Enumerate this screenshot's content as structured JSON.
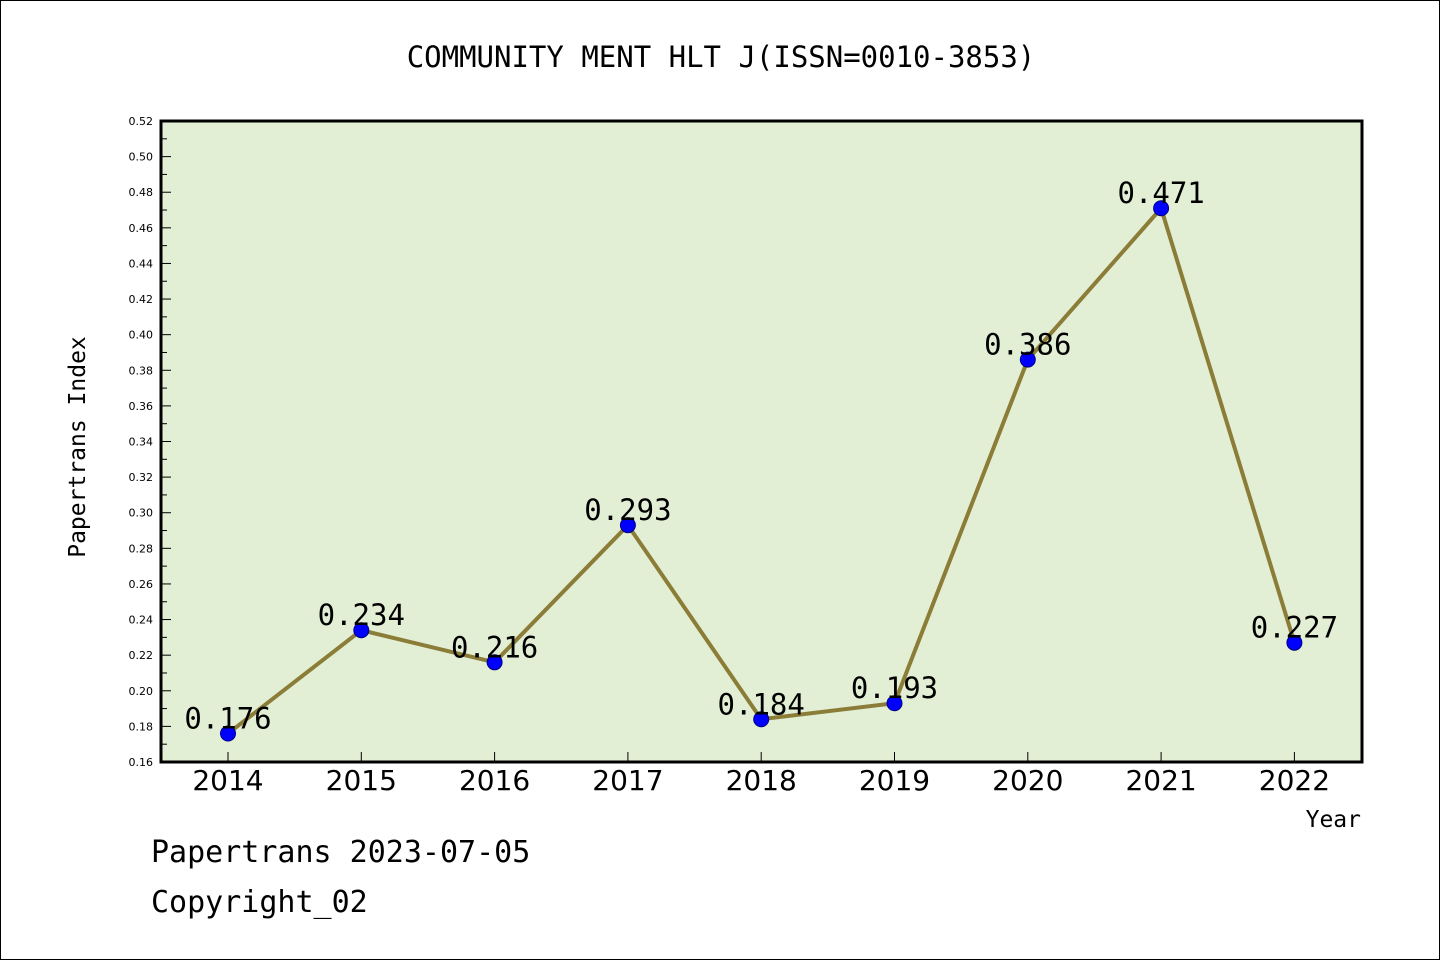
{
  "colors": {
    "plot_background": "#e2efd5",
    "line": "#8b7d37",
    "marker_fill": "#0000ff",
    "marker_stroke": "#000080",
    "axis": "#000000"
  },
  "footer": {
    "line1": "Papertrans 2023-07-05",
    "line2": "Copyright_02"
  },
  "chart_data": {
    "type": "line",
    "title": "COMMUNITY MENT HLT J(ISSN=0010-3853)",
    "xlabel": "Year",
    "ylabel": "Papertrans Index",
    "categories": [
      "2014",
      "2015",
      "2016",
      "2017",
      "2018",
      "2019",
      "2020",
      "2021",
      "2022"
    ],
    "series": [
      {
        "values": [
          0.176,
          0.234,
          0.216,
          0.293,
          0.184,
          0.193,
          0.386,
          0.471,
          0.227
        ]
      }
    ],
    "data_labels": [
      "0.176",
      "0.234",
      "0.216",
      "0.293",
      "0.184",
      "0.193",
      "0.386",
      "0.471",
      "0.227"
    ],
    "ylim": [
      0.16,
      0.52
    ],
    "yticks": [
      "0.16",
      "0.18",
      "0.20",
      "0.22",
      "0.24",
      "0.26",
      "0.28",
      "0.30",
      "0.32",
      "0.34",
      "0.36",
      "0.38",
      "0.40",
      "0.42",
      "0.44",
      "0.46",
      "0.48",
      "0.50",
      "0.52"
    ],
    "ytick_values": [
      0.16,
      0.18,
      0.2,
      0.22,
      0.24,
      0.26,
      0.28,
      0.3,
      0.32,
      0.34,
      0.36,
      0.38,
      0.4,
      0.42,
      0.44,
      0.46,
      0.48,
      0.5,
      0.52
    ],
    "grid": false,
    "legend": "none"
  }
}
